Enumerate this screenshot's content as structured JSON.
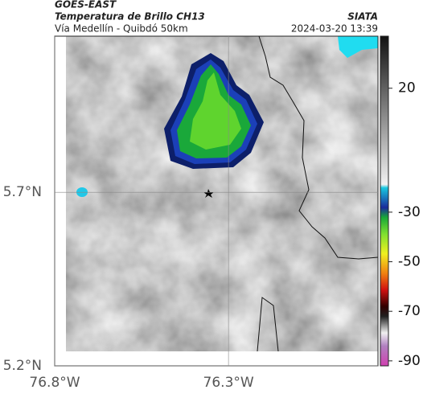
{
  "header": {
    "title": "GOES-EAST",
    "subtitle": "Temperatura de Brillo CH13",
    "route": "Vía Medellín - Quibdó 50km",
    "source": "SIATA",
    "timestamp": "2024-03-20 13:39"
  },
  "map": {
    "xlim": [
      -76.8,
      -75.87
    ],
    "ylim": [
      5.2,
      6.15
    ],
    "xticks": [
      {
        "value": -76.8,
        "label": "76.8°W"
      },
      {
        "value": -76.3,
        "label": "76.3°W"
      }
    ],
    "yticks": [
      {
        "value": 5.2,
        "label": "5.2°N"
      },
      {
        "value": 5.7,
        "label": "5.7°N"
      }
    ]
  },
  "colorbar": {
    "lim": [
      -92,
      41
    ],
    "ticks": [
      20,
      -30,
      -50,
      -70,
      -90
    ]
  }
}
